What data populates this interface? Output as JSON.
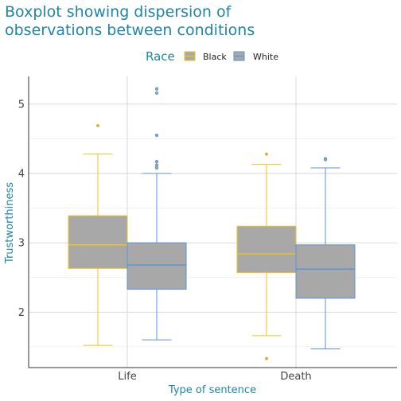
{
  "chart_data": {
    "type": "boxplot",
    "title": [
      "Boxplot showing dispersion of",
      "observations between conditions"
    ],
    "xlabel": "Type of sentence",
    "ylabel": "Trustworthiness",
    "ylim": [
      1.2,
      5.4
    ],
    "yticks": [
      2,
      3,
      4,
      5
    ],
    "categories": [
      "Life",
      "Death"
    ],
    "legend": {
      "title": "Race",
      "entries": [
        "Black",
        "White"
      ],
      "position": "top"
    },
    "colors": {
      "Black": "#f2c318",
      "White": "#5b93d4",
      "fill": "#a8a8a8",
      "title": "#1f86a6"
    },
    "series": [
      {
        "name": "Black",
        "boxes": [
          {
            "category": "Life",
            "whisker_low": 1.52,
            "q1": 2.63,
            "median": 2.97,
            "q3": 3.39,
            "whisker_high": 4.28,
            "outliers": [
              4.69
            ]
          },
          {
            "category": "Death",
            "whisker_low": 1.66,
            "q1": 2.57,
            "median": 2.84,
            "q3": 3.24,
            "whisker_high": 4.13,
            "outliers": [
              4.28,
              1.33
            ]
          }
        ]
      },
      {
        "name": "White",
        "boxes": [
          {
            "category": "Life",
            "whisker_low": 1.6,
            "q1": 2.33,
            "median": 2.68,
            "q3": 3.0,
            "whisker_high": 4.0,
            "outliers": [
              5.22,
              5.16,
              4.55,
              4.17,
              4.12,
              4.08
            ]
          },
          {
            "category": "Death",
            "whisker_low": 1.47,
            "q1": 2.2,
            "median": 2.62,
            "q3": 2.97,
            "whisker_high": 4.08,
            "outliers": [
              4.21,
              4.2
            ]
          }
        ]
      }
    ]
  }
}
